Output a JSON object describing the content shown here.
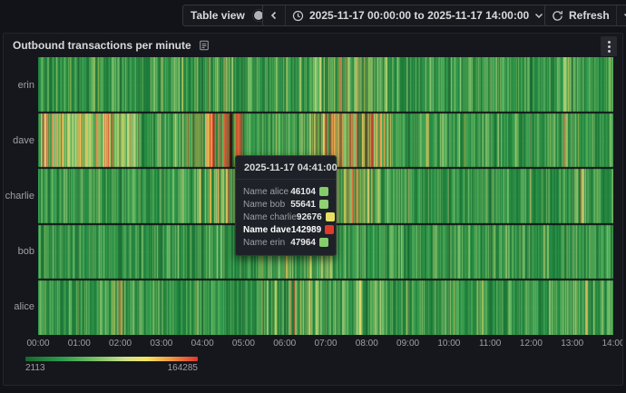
{
  "topbar": {
    "table_view": {
      "label": "Table view",
      "enabled": false
    },
    "time_picker": {
      "range": "2025-11-17 00:00:00 to 2025-11-17 14:00:00"
    },
    "refresh": {
      "label": "Refresh"
    }
  },
  "panel": {
    "title": "Outbound transactions per minute"
  },
  "chart_data": {
    "type": "heatmap",
    "title": "Outbound transactions per minute",
    "x_range": [
      "2025-11-17 00:00:00",
      "2025-11-17 14:00:00"
    ],
    "x_ticks": [
      "00:00",
      "01:00",
      "02:00",
      "03:00",
      "04:00",
      "05:00",
      "06:00",
      "07:00",
      "08:00",
      "09:00",
      "10:00",
      "11:00",
      "12:00",
      "13:00",
      "14:00"
    ],
    "y_categories": [
      "erin",
      "dave",
      "charlie",
      "bob",
      "alice"
    ],
    "minutes": 840,
    "color_scale": {
      "min": "2113",
      "max": "164285",
      "palette": [
        {
          "pos": 0.0,
          "color": "#15682e"
        },
        {
          "pos": 0.22,
          "color": "#2e9e4e"
        },
        {
          "pos": 0.42,
          "color": "#7fc36a"
        },
        {
          "pos": 0.58,
          "color": "#cfe08c"
        },
        {
          "pos": 0.7,
          "color": "#f3e55f"
        },
        {
          "pos": 0.84,
          "color": "#ef9b44"
        },
        {
          "pos": 1.0,
          "color": "#e0352b"
        }
      ]
    },
    "hover_marker": {
      "row": "dave",
      "minute": 281
    },
    "clusters": {
      "erin": [
        {
          "from": 1.0,
          "to": 1.6,
          "p": 0.25,
          "boost": 0.3
        },
        {
          "from": 3.8,
          "to": 4.8,
          "p": 0.3,
          "boost": 0.45
        },
        {
          "from": 6.7,
          "to": 8.5,
          "p": 0.3,
          "boost": 0.4
        },
        {
          "from": 12.8,
          "to": 13.3,
          "p": 0.3,
          "boost": 0.32
        }
      ],
      "dave": [
        {
          "from": 0.0,
          "to": 2.5,
          "p": 0.55,
          "boost": 0.45
        },
        {
          "from": 3.6,
          "to": 5.0,
          "p": 0.45,
          "boost": 0.72
        },
        {
          "from": 6.6,
          "to": 8.6,
          "p": 0.5,
          "boost": 0.65
        },
        {
          "from": 9.4,
          "to": 9.7,
          "p": 0.3,
          "boost": 0.5
        },
        {
          "from": 12.8,
          "to": 13.2,
          "p": 0.35,
          "boost": 0.4
        }
      ],
      "charlie": [
        {
          "from": 3.8,
          "to": 4.9,
          "p": 0.3,
          "boost": 0.4
        },
        {
          "from": 6.8,
          "to": 8.4,
          "p": 0.35,
          "boost": 0.45
        },
        {
          "from": 12.8,
          "to": 13.3,
          "p": 0.35,
          "boost": 0.35
        }
      ],
      "bob": [
        {
          "from": 5.4,
          "to": 7.3,
          "p": 0.25,
          "boost": 0.3
        },
        {
          "from": 12.8,
          "to": 13.3,
          "p": 0.25,
          "boost": 0.3
        }
      ],
      "alice": [
        {
          "from": 1.8,
          "to": 2.2,
          "p": 0.25,
          "boost": 0.35
        },
        {
          "from": 5.4,
          "to": 8.4,
          "p": 0.3,
          "boost": 0.35
        },
        {
          "from": 12.8,
          "to": 13.4,
          "p": 0.3,
          "boost": 0.35
        }
      ]
    },
    "tooltip": {
      "time": "2025-11-17 04:41:00",
      "rows": [
        {
          "label": "Name alice",
          "value": "46104",
          "color": "#85cb6b",
          "bold": false
        },
        {
          "label": "Name bob",
          "value": "55641",
          "color": "#8fd173",
          "bold": false
        },
        {
          "label": "Name charlie",
          "value": "92676",
          "color": "#e6e063",
          "bold": false
        },
        {
          "label": "Name dave",
          "value": "142989",
          "color": "#e03a2c",
          "bold": true
        },
        {
          "label": "Name erin",
          "value": "47964",
          "color": "#87cd6d",
          "bold": false
        }
      ]
    }
  }
}
